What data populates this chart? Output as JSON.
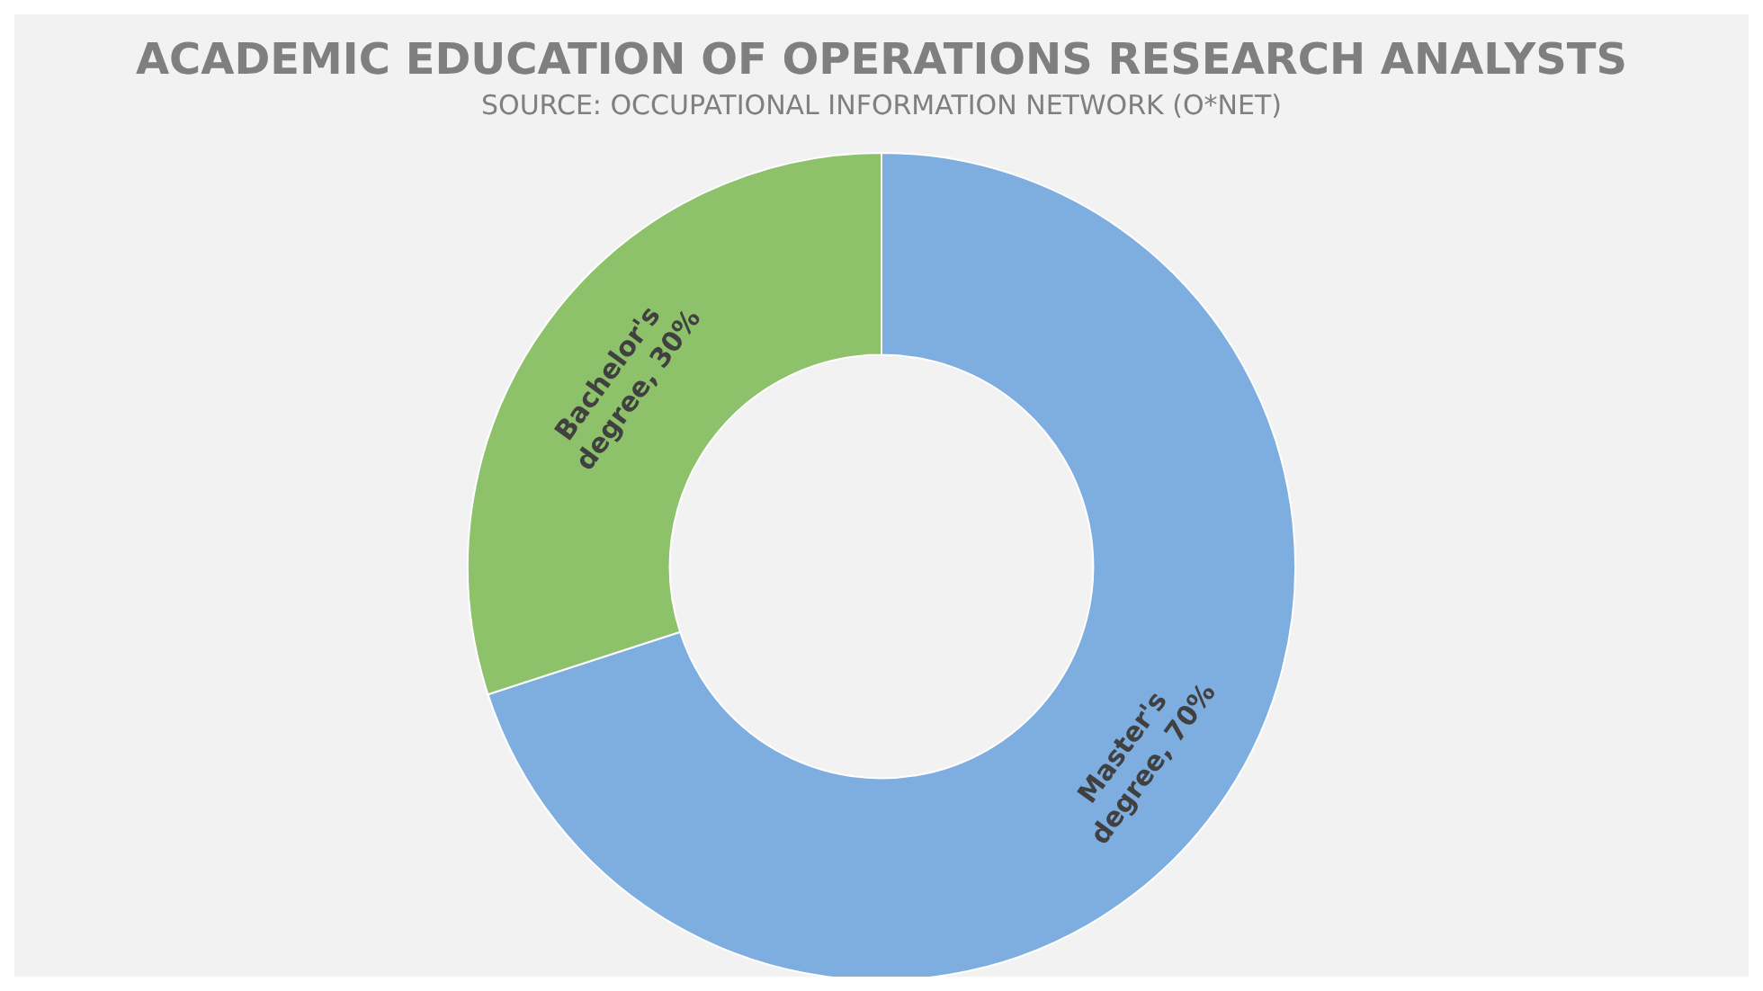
{
  "chart_data": {
    "type": "donut",
    "title": "ACADEMIC EDUCATION OF OPERATIONS RESEARCH ANALYSTS",
    "subtitle": "SOURCE: OCCUPATIONAL INFORMATION NETWORK (O*NET)",
    "categories": [
      "Master's degree",
      "Bachelor's degree"
    ],
    "values": [
      70,
      30
    ],
    "value_labels": [
      "70%",
      "30%"
    ],
    "colors": [
      "#7eaedf",
      "#8dc26b"
    ],
    "legend": false
  }
}
